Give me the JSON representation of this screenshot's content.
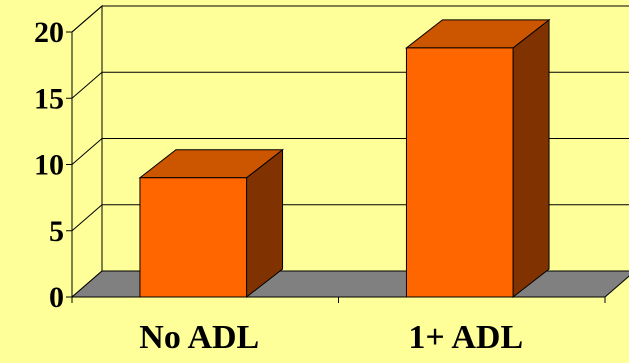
{
  "chart_data": {
    "type": "bar",
    "title": "",
    "xlabel": "",
    "ylabel": "",
    "categories": [
      "No ADL",
      "1+ ADL"
    ],
    "values": [
      9,
      18.8
    ],
    "ylim": [
      0,
      20
    ],
    "yticks": [
      0,
      5,
      10,
      15,
      20
    ],
    "grid": true,
    "three_d": true,
    "colors": {
      "background": "#FFFF99",
      "plot_wall": "#FFFF99",
      "floor": "#808080",
      "bar_front": "#FF6600",
      "bar_top": "#CC5500",
      "bar_side": "#803300",
      "gridline": "#000000"
    }
  }
}
